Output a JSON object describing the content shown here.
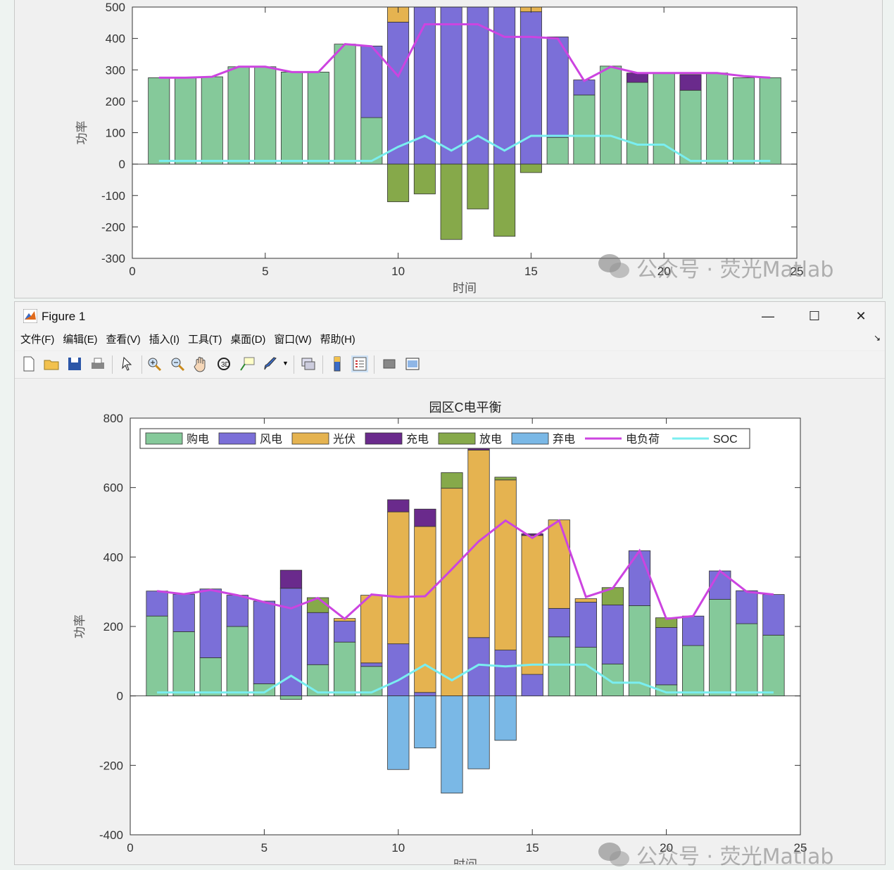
{
  "top_figure": {
    "chart_data": {
      "type": "bar",
      "title": "",
      "xlabel": "时间",
      "ylabel": "功率",
      "xlim": [
        0,
        25
      ],
      "ylim": [
        -300,
        500
      ],
      "xticks": [
        "0",
        "5",
        "10",
        "15",
        "20",
        "25"
      ],
      "yticks": [
        "-300",
        "-200",
        "-100",
        "0",
        "100",
        "200",
        "300",
        "400",
        "500"
      ],
      "x": [
        1,
        2,
        3,
        4,
        5,
        6,
        7,
        8,
        9,
        10,
        11,
        12,
        13,
        14,
        15,
        16,
        17,
        18,
        19,
        20,
        21,
        22,
        23,
        24
      ],
      "stacked_positive": [
        {
          "name": "购电",
          "color": "#85c99a",
          "values": [
            275,
            275,
            278,
            310,
            310,
            293,
            293,
            382,
            148,
            0,
            0,
            0,
            0,
            0,
            0,
            85,
            220,
            312,
            260,
            290,
            235,
            290,
            275,
            275
          ]
        },
        {
          "name": "风电",
          "color": "#7b6fd8",
          "values": [
            0,
            0,
            0,
            0,
            0,
            0,
            0,
            0,
            228,
            452,
            600,
            600,
            600,
            600,
            485,
            320,
            48,
            0,
            0,
            0,
            0,
            0,
            0,
            0
          ]
        },
        {
          "name": "光伏",
          "color": "#e5b350",
          "values": [
            0,
            0,
            0,
            0,
            0,
            0,
            0,
            0,
            0,
            50,
            0,
            0,
            0,
            0,
            40,
            0,
            0,
            0,
            0,
            0,
            0,
            0,
            0,
            0
          ]
        },
        {
          "name": "充电",
          "color": "#6a2a8c",
          "values": [
            0,
            0,
            0,
            0,
            0,
            0,
            0,
            0,
            0,
            0,
            0,
            0,
            0,
            0,
            0,
            0,
            0,
            0,
            30,
            0,
            50,
            0,
            0,
            0
          ]
        }
      ],
      "stacked_negative": [
        {
          "name": "放电",
          "color": "#86a94a",
          "values": [
            0,
            0,
            0,
            0,
            0,
            0,
            0,
            0,
            0,
            -120,
            -95,
            -240,
            -143,
            -230,
            -27,
            0,
            0,
            0,
            0,
            0,
            0,
            0,
            0,
            0
          ]
        }
      ],
      "lines": [
        {
          "name": "电负荷",
          "color": "#cc44e0",
          "values": [
            275,
            275,
            278,
            310,
            310,
            293,
            293,
            382,
            375,
            280,
            445,
            445,
            445,
            405,
            405,
            400,
            265,
            310,
            290,
            290,
            290,
            290,
            280,
            275
          ]
        },
        {
          "name": "SOC",
          "color": "#7aeef0",
          "values": [
            10,
            10,
            10,
            10,
            10,
            10,
            10,
            10,
            10,
            55,
            90,
            43,
            90,
            43,
            90,
            90,
            90,
            90,
            62,
            62,
            10,
            10,
            10,
            10
          ]
        }
      ]
    }
  },
  "bottom_figure": {
    "window_title": "Figure 1",
    "window_controls": {
      "minimize": "—",
      "maximize": "☐",
      "close": "✕"
    },
    "menu": [
      "文件(F)",
      "编辑(E)",
      "查看(V)",
      "插入(I)",
      "工具(T)",
      "桌面(D)",
      "窗口(W)",
      "帮助(H)"
    ],
    "toolbar_icons": [
      "new-figure-icon",
      "open-file-icon",
      "save-icon",
      "print-icon",
      "pointer-icon",
      "zoom-in-icon",
      "zoom-out-icon",
      "pan-icon",
      "rotate-icon",
      "data-cursor-icon",
      "brush-icon",
      "link-plot-icon",
      "colorbar-icon",
      "legend-icon",
      "hide-plot-tools-icon",
      "show-plot-tools-icon"
    ],
    "chart_data": {
      "type": "bar",
      "title": "园区C电平衡",
      "xlabel": "时间",
      "ylabel": "功率",
      "xlim": [
        0,
        25
      ],
      "ylim": [
        -400,
        800
      ],
      "xticks": [
        "0",
        "5",
        "10",
        "15",
        "20",
        "25"
      ],
      "yticks": [
        "-400",
        "-200",
        "0",
        "200",
        "400",
        "600",
        "800"
      ],
      "legend_position": "top",
      "legend": [
        "购电",
        "风电",
        "光伏",
        "充电",
        "放电",
        "弃电",
        "电负荷",
        "SOC"
      ],
      "x": [
        1,
        2,
        3,
        4,
        5,
        6,
        7,
        8,
        9,
        10,
        11,
        12,
        13,
        14,
        15,
        16,
        17,
        18,
        19,
        20,
        21,
        22,
        23,
        24
      ],
      "stacked_positive": [
        {
          "name": "购电",
          "color": "#85c99a",
          "values": [
            230,
            185,
            110,
            200,
            35,
            0,
            90,
            155,
            85,
            0,
            0,
            0,
            0,
            0,
            0,
            170,
            140,
            92,
            260,
            32,
            145,
            278,
            208,
            175
          ]
        },
        {
          "name": "风电",
          "color": "#7b6fd8",
          "values": [
            72,
            108,
            198,
            90,
            238,
            310,
            150,
            60,
            10,
            150,
            10,
            0,
            168,
            132,
            62,
            82,
            130,
            170,
            158,
            165,
            85,
            82,
            95,
            117
          ]
        },
        {
          "name": "光伏",
          "color": "#e5b350",
          "values": [
            0,
            0,
            0,
            0,
            0,
            0,
            0,
            8,
            195,
            380,
            478,
            598,
            540,
            490,
            400,
            255,
            10,
            0,
            0,
            0,
            0,
            0,
            0,
            0
          ]
        },
        {
          "name": "充电",
          "color": "#6a2a8c",
          "values": [
            0,
            0,
            0,
            0,
            0,
            52,
            0,
            0,
            0,
            35,
            50,
            0,
            5,
            0,
            5,
            0,
            0,
            0,
            0,
            0,
            0,
            0,
            0,
            0
          ]
        },
        {
          "name": "放电",
          "color": "#86a94a",
          "values": [
            0,
            0,
            0,
            0,
            0,
            0,
            43,
            0,
            0,
            0,
            0,
            45,
            0,
            8,
            0,
            0,
            0,
            50,
            0,
            28,
            0,
            0,
            0,
            0
          ]
        }
      ],
      "stacked_negative": [
        {
          "name": "购电",
          "color": "#85c99a",
          "values": [
            0,
            0,
            0,
            0,
            0,
            -10,
            0,
            0,
            0,
            0,
            0,
            0,
            0,
            0,
            0,
            0,
            0,
            0,
            0,
            0,
            0,
            0,
            0,
            0
          ]
        },
        {
          "name": "弃电",
          "color": "#7ab8e6",
          "values": [
            0,
            0,
            0,
            0,
            0,
            0,
            0,
            0,
            0,
            -212,
            -150,
            -280,
            -210,
            -128,
            0,
            0,
            0,
            0,
            0,
            0,
            0,
            0,
            0,
            0
          ]
        }
      ],
      "lines": [
        {
          "name": "电负荷",
          "color": "#cc44e0",
          "values": [
            302,
            293,
            305,
            290,
            270,
            252,
            282,
            222,
            292,
            285,
            287,
            365,
            445,
            505,
            455,
            505,
            285,
            310,
            418,
            222,
            230,
            360,
            300,
            292
          ]
        },
        {
          "name": "SOC",
          "color": "#7aeef0",
          "values": [
            10,
            10,
            10,
            10,
            10,
            58,
            10,
            10,
            10,
            45,
            90,
            45,
            90,
            85,
            90,
            90,
            90,
            38,
            38,
            10,
            10,
            10,
            10,
            10
          ]
        }
      ]
    }
  },
  "watermark": {
    "text_top": "公众号 · 荧光Matlab",
    "text_bottom": "公众号 · 荧光Matlab"
  }
}
